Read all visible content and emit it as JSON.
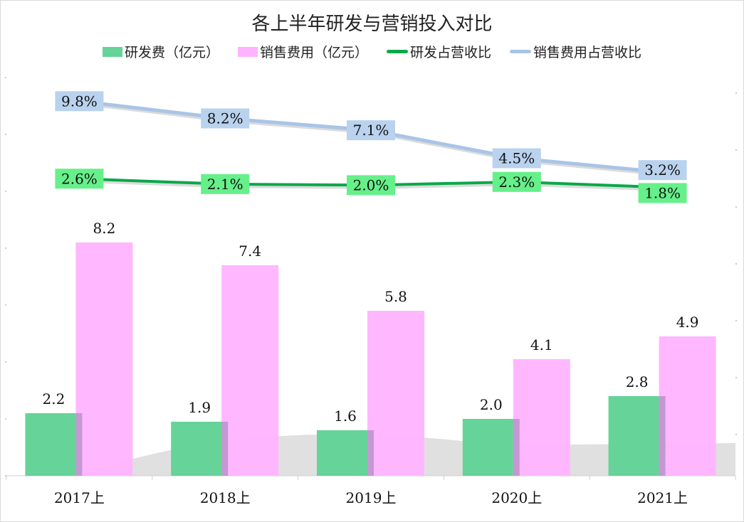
{
  "chart_data": {
    "type": "bar+line",
    "title": "各上半年研发与营销投入对比",
    "categories": [
      "2017上",
      "2018上",
      "2019上",
      "2020上",
      "2021上"
    ],
    "series": [
      {
        "name": "研发费（亿元）",
        "type": "bar",
        "axis": "primary",
        "color": "#66d398",
        "values": [
          2.2,
          1.9,
          1.6,
          2.0,
          2.8
        ],
        "labels": [
          "2.2",
          "1.9",
          "1.6",
          "2.0",
          "2.8"
        ]
      },
      {
        "name": "销售费用（亿元）",
        "type": "bar",
        "axis": "primary",
        "color": "#ffb3ff",
        "values": [
          8.2,
          7.4,
          5.8,
          4.1,
          4.9
        ],
        "labels": [
          "8.2",
          "7.4",
          "5.8",
          "4.1",
          "4.9"
        ]
      },
      {
        "name": "研发占营收比",
        "type": "line",
        "axis": "secondary",
        "color": "#0aa84a",
        "label_bg": "#66f08a",
        "values": [
          2.6,
          2.1,
          2.0,
          2.3,
          1.8
        ],
        "labels": [
          "2.6%",
          "2.1%",
          "2.0%",
          "2.3%",
          "1.8%"
        ]
      },
      {
        "name": "销售费用占营收比",
        "type": "line",
        "axis": "secondary",
        "color": "#a9c4e6",
        "label_bg": "#b9d2ee",
        "values": [
          9.8,
          8.2,
          7.1,
          4.5,
          3.2
        ],
        "labels": [
          "9.8%",
          "8.2%",
          "7.1%",
          "4.5%",
          "3.2%"
        ]
      }
    ],
    "ylim": [
      0,
      14
    ],
    "y2lim": [
      -25,
      12
    ],
    "grid": false,
    "legend": "top"
  }
}
